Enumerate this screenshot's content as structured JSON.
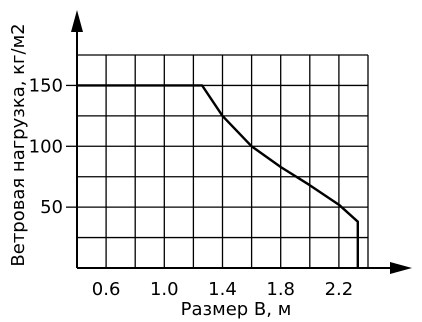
{
  "chart_data": {
    "type": "line",
    "title": "",
    "xlabel": "Размер B, м",
    "ylabel": "Ветровая нагрузка, кг/м2",
    "xlim": [
      0.4,
      2.4
    ],
    "ylim": [
      0,
      175
    ],
    "xticks": [
      "0.6",
      "1.0",
      "1.4",
      "1.8",
      "2.2"
    ],
    "yticks": [
      "50",
      "100",
      "150"
    ],
    "grid": true,
    "series": [
      {
        "points": [
          {
            "x": 0.4,
            "y": 150
          },
          {
            "x": 1.26,
            "y": 150
          },
          {
            "x": 1.4,
            "y": 125
          },
          {
            "x": 1.6,
            "y": 100
          },
          {
            "x": 1.8,
            "y": 83
          },
          {
            "x": 2.0,
            "y": 68
          },
          {
            "x": 2.2,
            "y": 52
          },
          {
            "x": 2.33,
            "y": 38
          },
          {
            "x": 2.33,
            "y": 0
          }
        ]
      }
    ]
  }
}
